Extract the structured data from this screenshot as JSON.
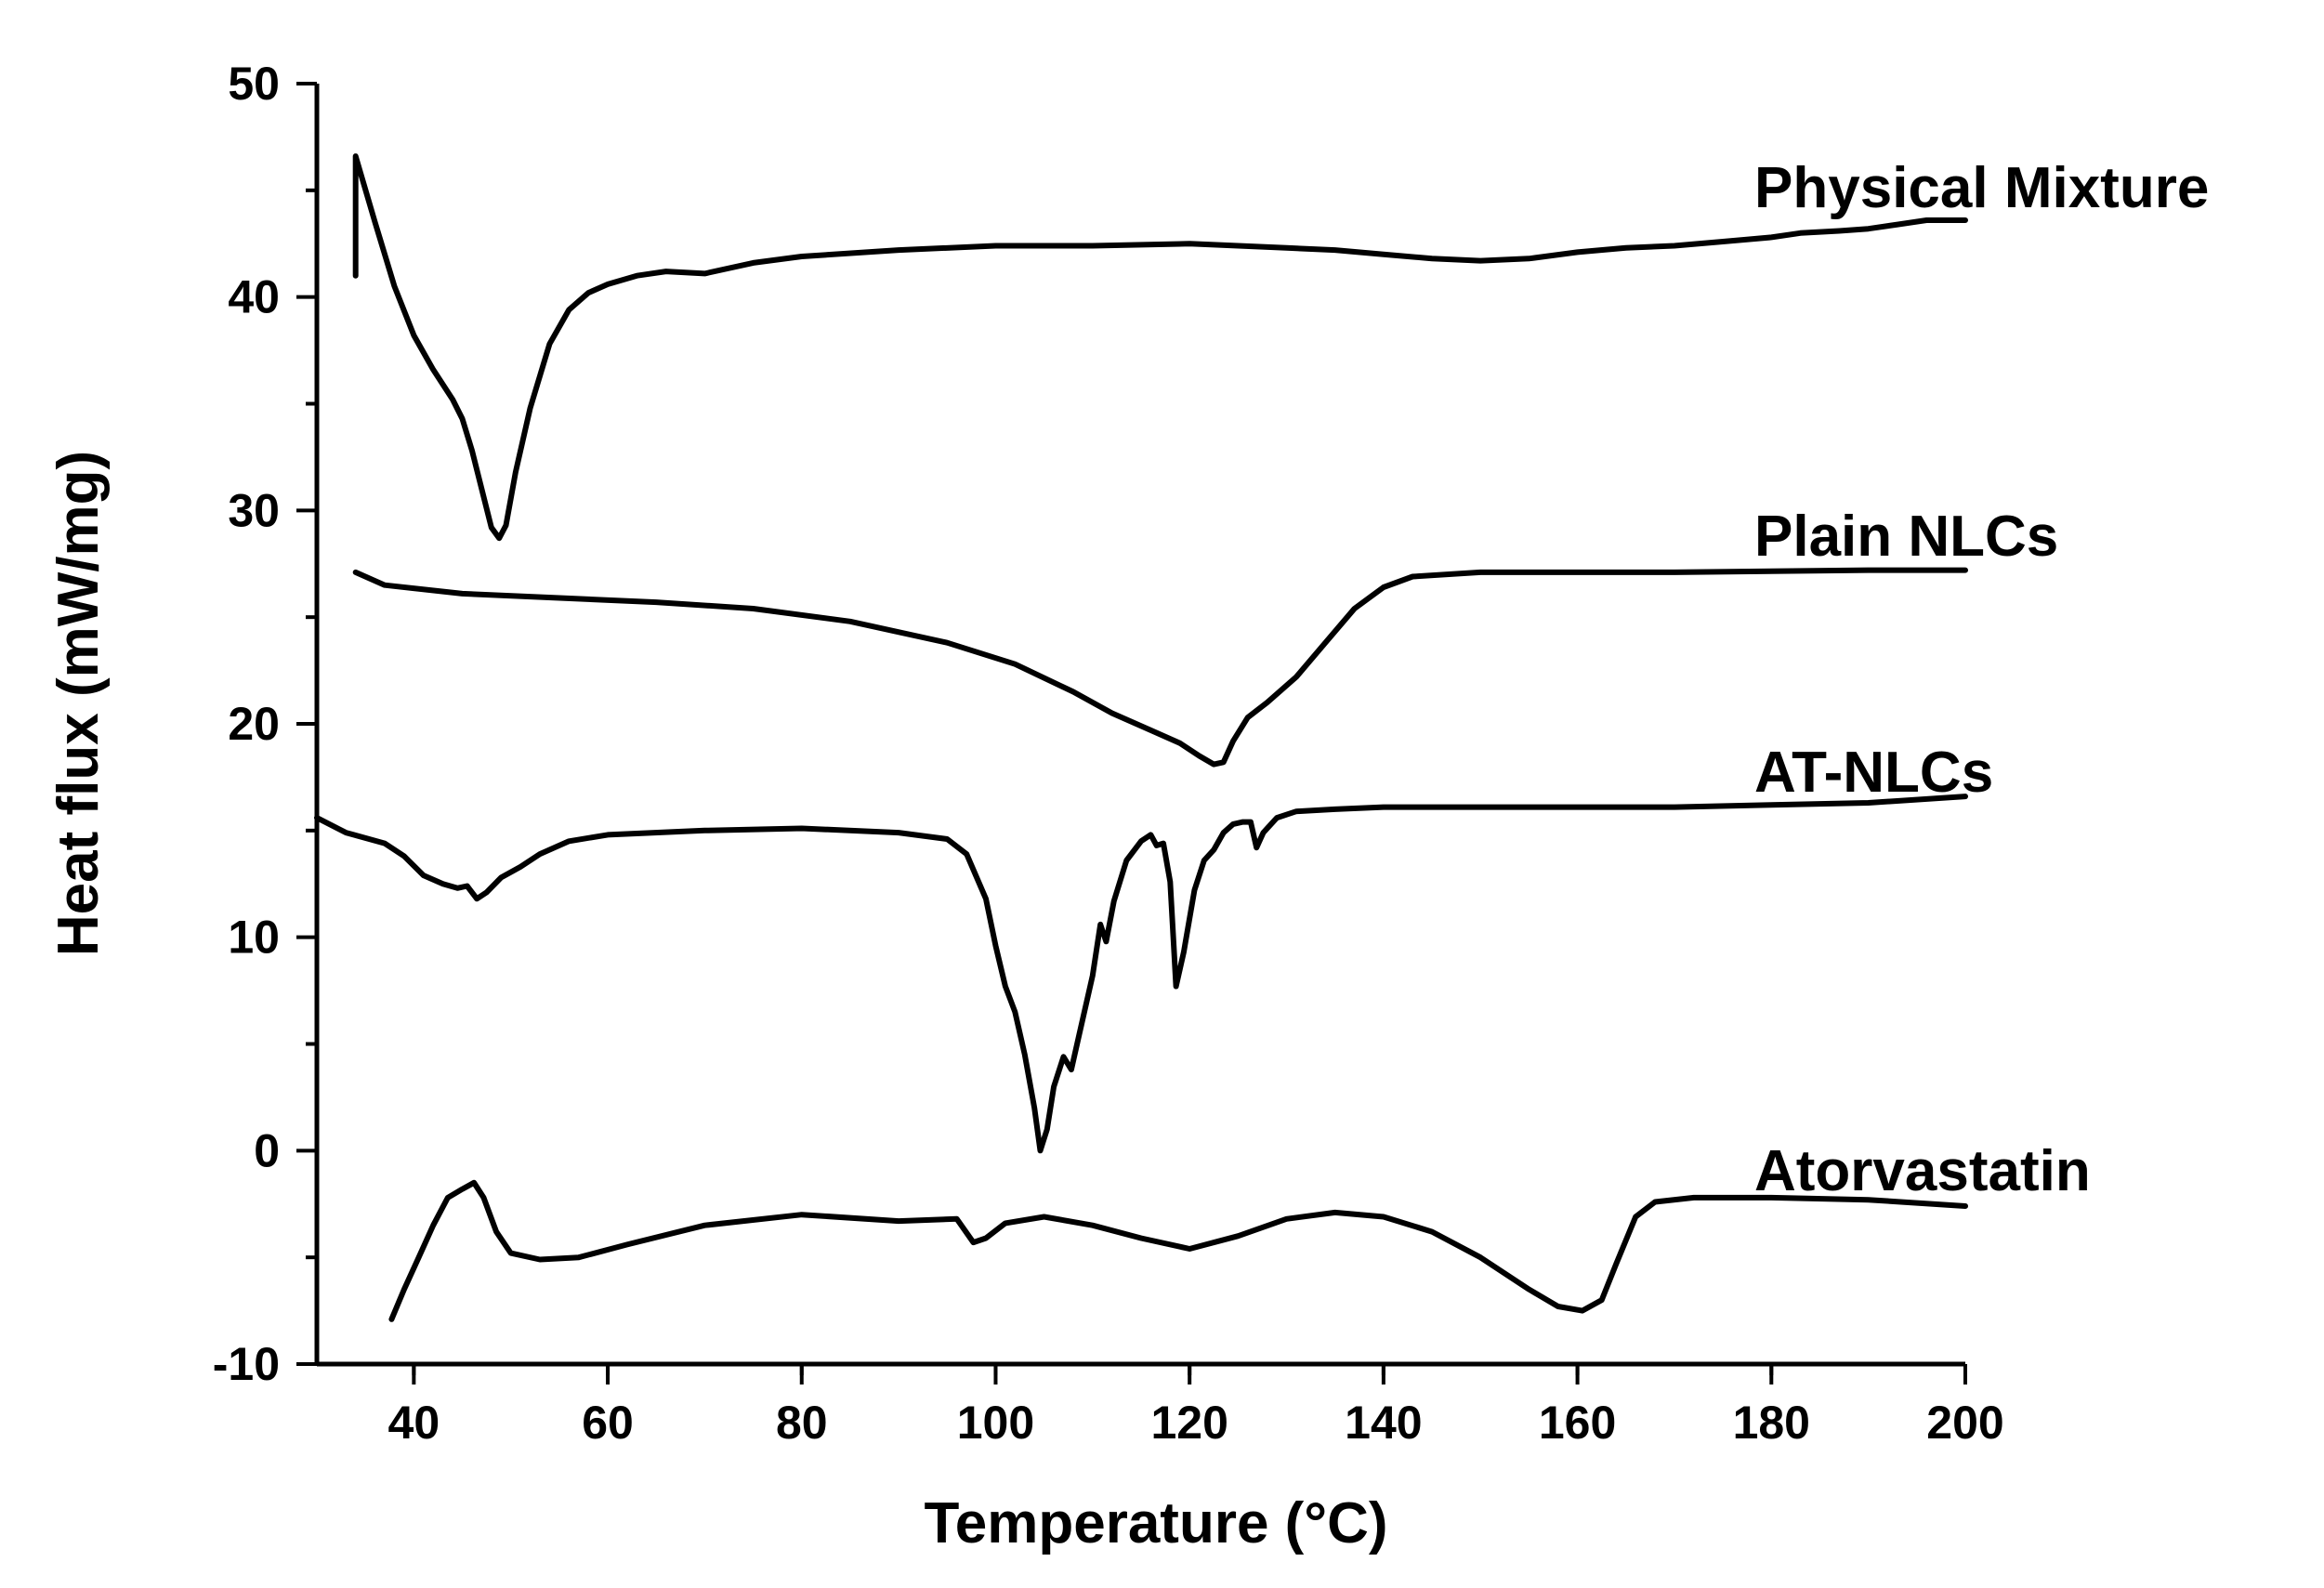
{
  "chart_data": {
    "type": "line",
    "title": "",
    "xlabel": "Temperature (°C)",
    "ylabel": "Heat flux (mW/mg)",
    "xlim": [
      30,
      200
    ],
    "ylim": [
      -10,
      50
    ],
    "x_ticks": [
      40,
      60,
      80,
      100,
      120,
      140,
      160,
      180,
      200
    ],
    "x_tick_labels": [
      "40",
      "60",
      "80",
      "100",
      "120",
      "140",
      "160",
      "180",
      "200"
    ],
    "y_ticks": [
      -10,
      0,
      10,
      20,
      30,
      40,
      50
    ],
    "y_tick_labels": [
      "-10",
      "0",
      "10",
      "20",
      "30",
      "40",
      "50"
    ],
    "colors": {
      "line": "#000000",
      "axis": "#000000",
      "background": "#ffffff"
    },
    "series": [
      {
        "name": "Physical Mixture",
        "points": [
          [
            34,
            41
          ],
          [
            34,
            46.6
          ],
          [
            36,
            43.5
          ],
          [
            38,
            40.5
          ],
          [
            40,
            38.2
          ],
          [
            42,
            36.6
          ],
          [
            44,
            35.2
          ],
          [
            45,
            34.3
          ],
          [
            46,
            32.8
          ],
          [
            47,
            31
          ],
          [
            48,
            29.2
          ],
          [
            48.8,
            28.7
          ],
          [
            49.5,
            29.3
          ],
          [
            50.5,
            31.8
          ],
          [
            52,
            34.8
          ],
          [
            54,
            37.8
          ],
          [
            56,
            39.4
          ],
          [
            58,
            40.2
          ],
          [
            60,
            40.6
          ],
          [
            63,
            41
          ],
          [
            66,
            41.2
          ],
          [
            70,
            41.1
          ],
          [
            75,
            41.6
          ],
          [
            80,
            41.9
          ],
          [
            90,
            42.2
          ],
          [
            100,
            42.4
          ],
          [
            110,
            42.4
          ],
          [
            120,
            42.5
          ],
          [
            125,
            42.4
          ],
          [
            130,
            42.3
          ],
          [
            135,
            42.2
          ],
          [
            140,
            42
          ],
          [
            145,
            41.8
          ],
          [
            150,
            41.7
          ],
          [
            155,
            41.8
          ],
          [
            160,
            42.1
          ],
          [
            165,
            42.3
          ],
          [
            170,
            42.4
          ],
          [
            175,
            42.6
          ],
          [
            180,
            42.8
          ],
          [
            183,
            43
          ],
          [
            187,
            43.1
          ],
          [
            190,
            43.2
          ],
          [
            193,
            43.4
          ],
          [
            196,
            43.6
          ],
          [
            200,
            43.6
          ]
        ]
      },
      {
        "name": "Plain NLCs",
        "points": [
          [
            34,
            27.1
          ],
          [
            37,
            26.5
          ],
          [
            45,
            26.1
          ],
          [
            55,
            25.9
          ],
          [
            65,
            25.7
          ],
          [
            75,
            25.4
          ],
          [
            85,
            24.8
          ],
          [
            95,
            23.8
          ],
          [
            102,
            22.8
          ],
          [
            108,
            21.5
          ],
          [
            112,
            20.5
          ],
          [
            116,
            19.7
          ],
          [
            119,
            19.1
          ],
          [
            121,
            18.5
          ],
          [
            122.5,
            18.1
          ],
          [
            123.5,
            18.2
          ],
          [
            124.5,
            19.2
          ],
          [
            126,
            20.3
          ],
          [
            128,
            21
          ],
          [
            131,
            22.2
          ],
          [
            134,
            23.8
          ],
          [
            137,
            25.4
          ],
          [
            140,
            26.4
          ],
          [
            143,
            26.9
          ],
          [
            150,
            27.1
          ],
          [
            170,
            27.1
          ],
          [
            190,
            27.2
          ],
          [
            200,
            27.2
          ]
        ]
      },
      {
        "name": "AT-NLCs",
        "points": [
          [
            30,
            15.6
          ],
          [
            33,
            14.9
          ],
          [
            37,
            14.4
          ],
          [
            39,
            13.8
          ],
          [
            41,
            12.9
          ],
          [
            43,
            12.5
          ],
          [
            44.5,
            12.3
          ],
          [
            45.5,
            12.4
          ],
          [
            46.5,
            11.8
          ],
          [
            47.5,
            12.1
          ],
          [
            49,
            12.8
          ],
          [
            51,
            13.3
          ],
          [
            53,
            13.9
          ],
          [
            56,
            14.5
          ],
          [
            60,
            14.8
          ],
          [
            70,
            15
          ],
          [
            80,
            15.1
          ],
          [
            90,
            14.9
          ],
          [
            95,
            14.6
          ],
          [
            97,
            13.9
          ],
          [
            99,
            11.8
          ],
          [
            100,
            9.6
          ],
          [
            101,
            7.7
          ],
          [
            102,
            6.5
          ],
          [
            103,
            4.5
          ],
          [
            104,
            2
          ],
          [
            104.6,
            0
          ],
          [
            105.3,
            1
          ],
          [
            106,
            3
          ],
          [
            107,
            4.4
          ],
          [
            107.8,
            3.8
          ],
          [
            108.6,
            5.4
          ],
          [
            110,
            8.2
          ],
          [
            110.8,
            10.6
          ],
          [
            111.4,
            9.8
          ],
          [
            112.2,
            11.7
          ],
          [
            113.5,
            13.6
          ],
          [
            115,
            14.5
          ],
          [
            116,
            14.8
          ],
          [
            116.6,
            14.3
          ],
          [
            117.3,
            14.4
          ],
          [
            118,
            12.6
          ],
          [
            118.6,
            7.7
          ],
          [
            119.4,
            9.3
          ],
          [
            120.5,
            12.2
          ],
          [
            121.5,
            13.6
          ],
          [
            122.5,
            14.1
          ],
          [
            123.5,
            14.9
          ],
          [
            124.5,
            15.3
          ],
          [
            125.5,
            15.4
          ],
          [
            126.3,
            15.4
          ],
          [
            126.9,
            14.2
          ],
          [
            127.6,
            14.9
          ],
          [
            129,
            15.6
          ],
          [
            131,
            15.9
          ],
          [
            135,
            16
          ],
          [
            140,
            16.1
          ],
          [
            150,
            16.1
          ],
          [
            160,
            16.1
          ],
          [
            170,
            16.1
          ],
          [
            180,
            16.2
          ],
          [
            190,
            16.3
          ],
          [
            200,
            16.6
          ]
        ]
      },
      {
        "name": "Atorvastatin",
        "points": [
          [
            37.7,
            -7.9
          ],
          [
            39,
            -6.5
          ],
          [
            40.5,
            -5
          ],
          [
            42,
            -3.5
          ],
          [
            43.5,
            -2.2
          ],
          [
            45,
            -1.8
          ],
          [
            46.2,
            -1.5
          ],
          [
            47.2,
            -2.2
          ],
          [
            48.5,
            -3.8
          ],
          [
            50,
            -4.8
          ],
          [
            53,
            -5.1
          ],
          [
            57,
            -5
          ],
          [
            62,
            -4.4
          ],
          [
            70,
            -3.5
          ],
          [
            80,
            -3
          ],
          [
            90,
            -3.3
          ],
          [
            96,
            -3.2
          ],
          [
            97.7,
            -4.3
          ],
          [
            99,
            -4.1
          ],
          [
            101,
            -3.4
          ],
          [
            105,
            -3.1
          ],
          [
            110,
            -3.5
          ],
          [
            115,
            -4.1
          ],
          [
            120,
            -4.6
          ],
          [
            125,
            -4
          ],
          [
            130,
            -3.2
          ],
          [
            135,
            -2.9
          ],
          [
            140,
            -3.1
          ],
          [
            145,
            -3.8
          ],
          [
            150,
            -5
          ],
          [
            155,
            -6.5
          ],
          [
            158,
            -7.3
          ],
          [
            160.5,
            -7.5
          ],
          [
            162.5,
            -7
          ],
          [
            164,
            -5.3
          ],
          [
            166,
            -3.1
          ],
          [
            168,
            -2.4
          ],
          [
            172,
            -2.2
          ],
          [
            180,
            -2.2
          ],
          [
            190,
            -2.3
          ],
          [
            200,
            -2.6
          ]
        ]
      }
    ]
  }
}
